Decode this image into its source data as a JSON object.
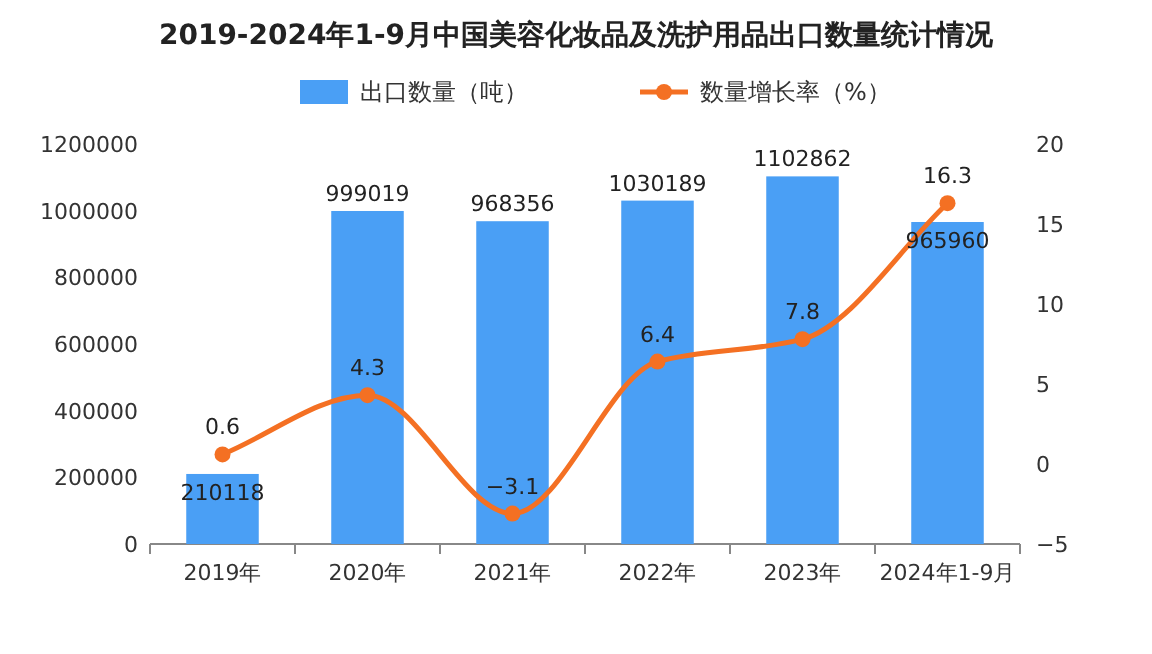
{
  "chart_data": {
    "type": "bar",
    "title": "2019-2024年1-9月中国美容化妆品及洗护用品出口数量统计情况",
    "categories": [
      "2019年",
      "2020年",
      "2021年",
      "2022年",
      "2023年",
      "2024年1-9月"
    ],
    "series": [
      {
        "name": "出口数量（吨）",
        "color": "#4a9ff5",
        "values": [
          210118,
          999019,
          968356,
          1030189,
          1102862,
          965960
        ]
      },
      {
        "name": "数量增长率（%）",
        "type": "line",
        "axis": "y2",
        "color": "#f47023",
        "values": [
          0.6,
          4.3,
          -3.1,
          6.4,
          7.8,
          16.3
        ]
      }
    ],
    "ylim": [
      0,
      1200000
    ],
    "yticks": [
      0,
      200000,
      400000,
      600000,
      800000,
      1000000,
      1200000
    ],
    "y2lim": [
      -5,
      20
    ],
    "y2ticks": [
      -5,
      0,
      5,
      10,
      15,
      20
    ],
    "data_labels": true,
    "legend": "top",
    "grid": false,
    "marker": "circle",
    "line_style": "solid"
  }
}
